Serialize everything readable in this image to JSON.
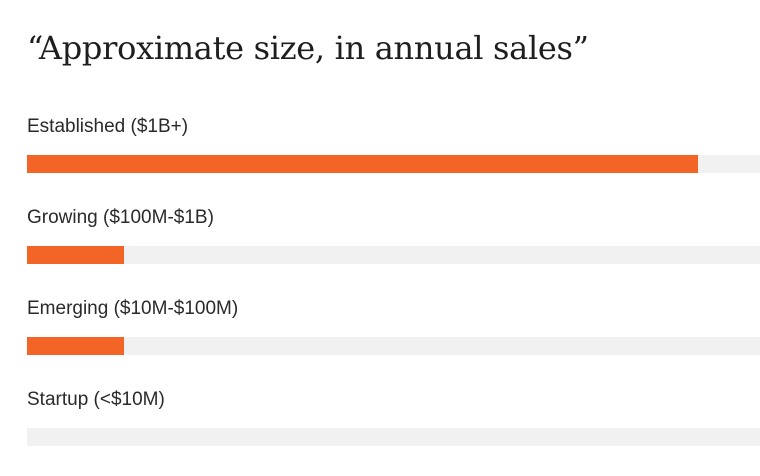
{
  "chart_data": {
    "type": "bar",
    "orientation": "horizontal",
    "title": "“Approximate size, in annual sales”",
    "categories": [
      "Established ($1B+)",
      "Growing ($100M-$1B)",
      "Emerging ($10M-$100M)",
      "Startup (<$10M)"
    ],
    "values": [
      0.915,
      0.133,
      0.133,
      0.0
    ],
    "value_unit": "fraction of bar track",
    "xlim": [
      0,
      1
    ],
    "grid": false,
    "legend": "none",
    "bar_color": "#f26527",
    "track_color": "#f1f1f1"
  }
}
